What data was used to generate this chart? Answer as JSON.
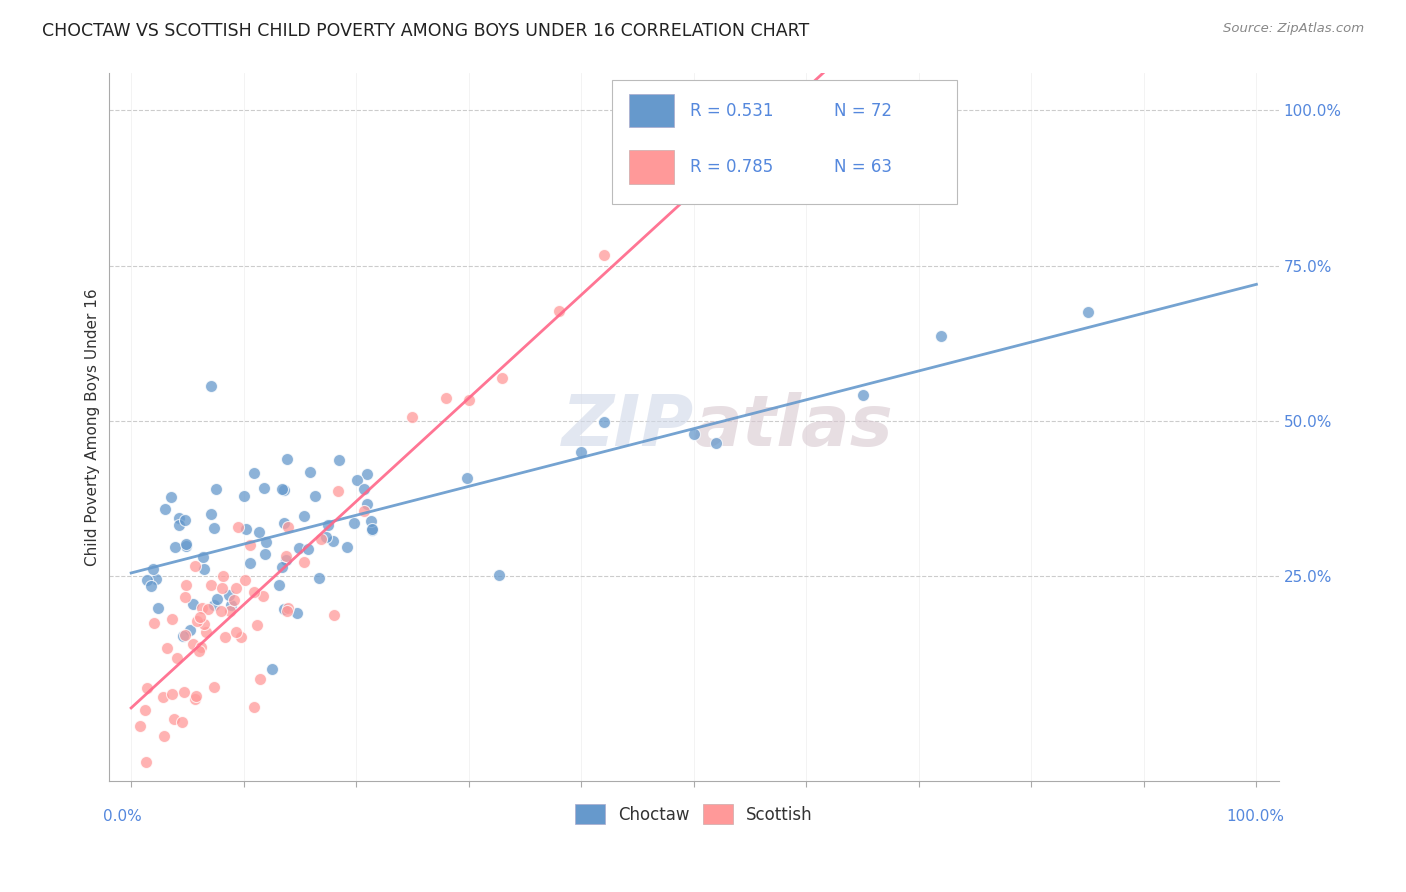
{
  "title": "CHOCTAW VS SCOTTISH CHILD POVERTY AMONG BOYS UNDER 16 CORRELATION CHART",
  "source": "Source: ZipAtlas.com",
  "ylabel": "Child Poverty Among Boys Under 16",
  "watermark": "ZIPAtlas",
  "choctaw_color": "#6699CC",
  "scottish_color": "#FF9999",
  "choctaw_line_color": "#6699CC",
  "scottish_line_color": "#FF6688",
  "legend_r_choctaw": "0.531",
  "legend_n_choctaw": "72",
  "legend_r_scottish": "0.785",
  "legend_n_scottish": "63",
  "background_color": "#ffffff",
  "grid_color": "#cccccc",
  "axis_label_color": "#5588DD",
  "title_color": "#222222",
  "ytick_vals": [
    0.25,
    0.5,
    0.75,
    1.0
  ],
  "ytick_labels": [
    "25.0%",
    "50.0%",
    "75.0%",
    "100.0%"
  ],
  "xlim": [
    -0.02,
    1.02
  ],
  "ylim": [
    -0.08,
    1.06
  ]
}
